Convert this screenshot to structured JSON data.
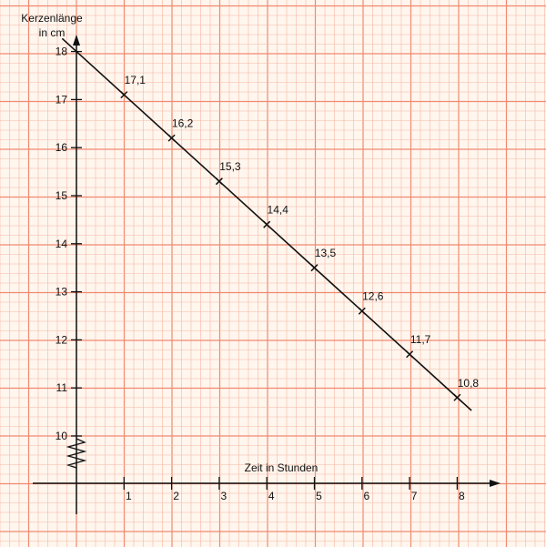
{
  "chart_data": {
    "type": "line",
    "ylabel_line1": "Kerzenlänge",
    "ylabel_line2": "in cm",
    "xlabel": "Zeit in Stunden",
    "x": [
      0,
      1,
      2,
      3,
      4,
      5,
      6,
      7,
      8
    ],
    "series": [
      {
        "values": [
          18,
          17.1,
          16.2,
          15.3,
          14.4,
          13.5,
          12.6,
          11.7,
          10.8
        ]
      }
    ],
    "data_labels": [
      "17,1",
      "16,2",
      "15,3",
      "14,4",
      "13,5",
      "12,6",
      "11,7",
      "10,8"
    ],
    "xticks": [
      "1",
      "2",
      "3",
      "4",
      "5",
      "6",
      "7",
      "8"
    ],
    "yticks": [
      "10",
      "11",
      "12",
      "13",
      "14",
      "15",
      "16",
      "17",
      "18"
    ],
    "xlim": [
      0,
      8
    ],
    "ylim": [
      10,
      18
    ],
    "y_axis_break": true,
    "grid": true,
    "colors": {
      "paper": "#fff6ee",
      "grid_major": "#f08a70",
      "grid_minor": "#f6b8a4",
      "ink": "#111111"
    }
  }
}
